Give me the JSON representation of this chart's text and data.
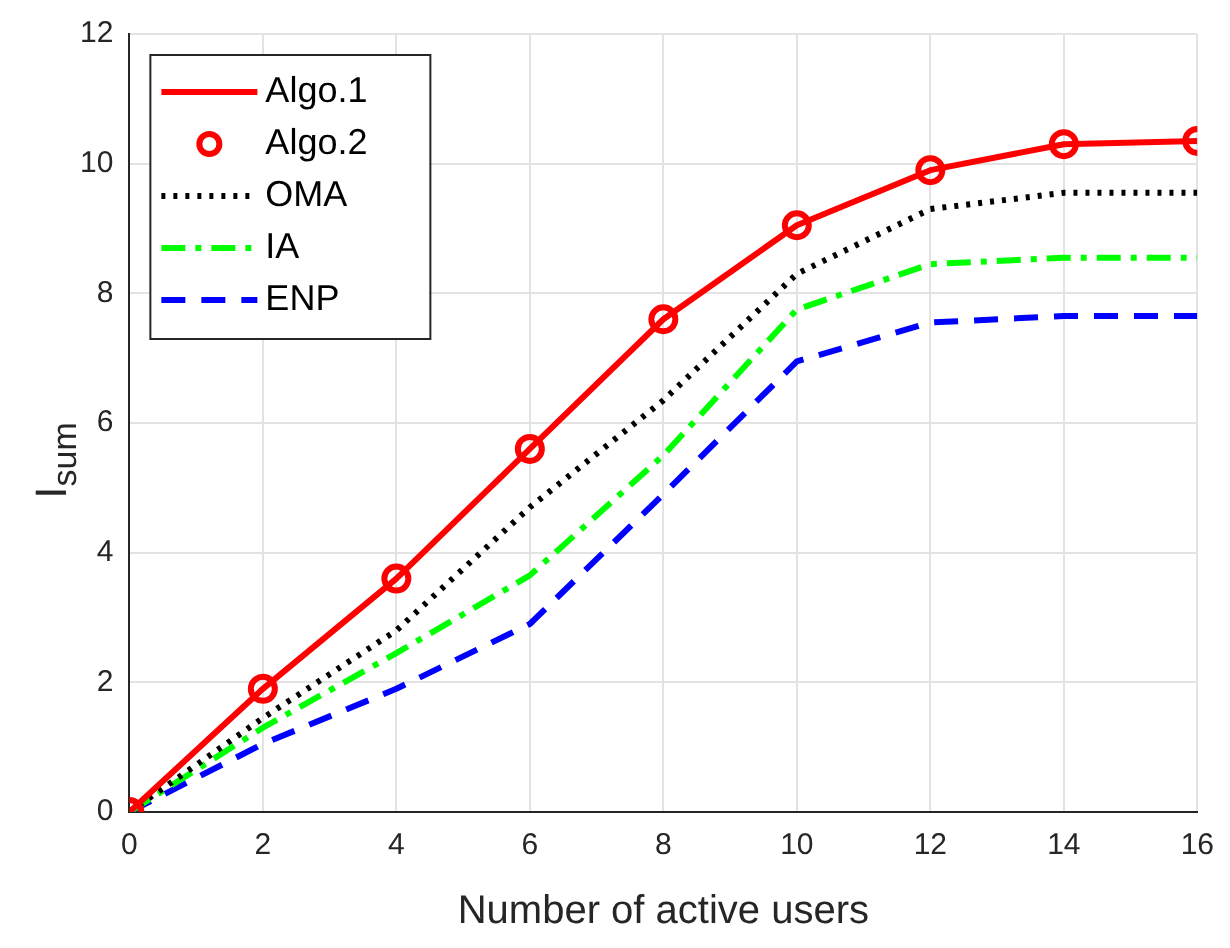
{
  "chart_data": {
    "type": "line",
    "xlabel": "Number of active users",
    "ylabel": "I$_{sum}$",
    "x": [
      0,
      2,
      4,
      6,
      8,
      10,
      12,
      14,
      16
    ],
    "series": [
      {
        "name": "Algo.1",
        "color": "#ff0000",
        "marker": "none",
        "line_style": "solid",
        "values": [
          0,
          1.9,
          3.6,
          5.6,
          7.6,
          9.05,
          9.9,
          10.3,
          10.35
        ]
      },
      {
        "name": "Algo.2",
        "type": "scatter",
        "color": "#ff0000",
        "marker": "circle",
        "values": [
          0,
          1.9,
          3.6,
          5.6,
          7.6,
          9.05,
          9.9,
          10.3,
          10.35
        ]
      },
      {
        "name": "OMA",
        "color": "#000000",
        "marker": "none",
        "line_style": "dotted",
        "values": [
          0,
          1.45,
          2.8,
          4.7,
          6.35,
          8.3,
          9.3,
          9.55,
          9.55
        ]
      },
      {
        "name": "IA",
        "color": "#00ff00",
        "marker": "none",
        "line_style": "dashdot",
        "values": [
          0,
          1.3,
          2.45,
          3.65,
          5.5,
          7.75,
          8.45,
          8.55,
          8.55
        ]
      },
      {
        "name": "ENP",
        "color": "#0000ff",
        "marker": "none",
        "line_style": "dashed",
        "values": [
          0,
          1.05,
          1.9,
          2.9,
          4.9,
          6.95,
          7.55,
          7.65,
          7.65
        ]
      }
    ],
    "xlim": [
      0,
      16
    ],
    "xticks": [
      0,
      2,
      4,
      6,
      8,
      10,
      12,
      14,
      16
    ],
    "ylim": [
      0,
      12
    ],
    "yticks": [
      0,
      2,
      4,
      6,
      8,
      10,
      12
    ],
    "grid": true,
    "legend": "top left"
  }
}
